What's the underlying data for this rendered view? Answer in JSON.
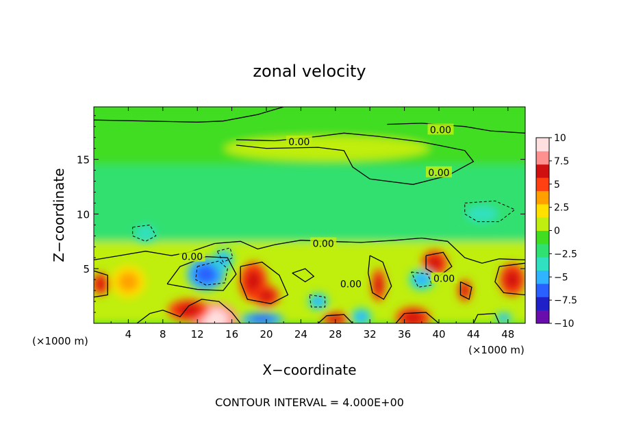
{
  "chart_data": {
    "type": "heatmap",
    "title": "zonal velocity",
    "xlabel": "X−coordinate",
    "ylabel": "Z−coordinate",
    "x_unit_left": "(×1000 m)",
    "x_unit_right": "(×1000 m)",
    "footer": "CONTOUR INTERVAL = 4.000E+00",
    "xlim": [
      0,
      50
    ],
    "ylim": [
      0,
      19.8
    ],
    "x_ticks": [
      4,
      8,
      12,
      16,
      20,
      24,
      28,
      32,
      36,
      40,
      44,
      48
    ],
    "x_tick_labels": [
      "4",
      "8",
      "12",
      "16",
      "20",
      "24",
      "28",
      "32",
      "36",
      "40",
      "44",
      "48"
    ],
    "y_ticks": [
      5,
      10,
      15
    ],
    "y_tick_labels": [
      "5",
      "10",
      "15"
    ],
    "colorbar": {
      "range": [
        -10,
        10
      ],
      "ticks": [
        10,
        7.5,
        5,
        2.5,
        0,
        -2.5,
        -5,
        -7.5,
        -10
      ],
      "tick_labels": [
        "10",
        "7.5",
        "5",
        "2.5",
        "0",
        "−2.5",
        "−5",
        "−7.5",
        "−10"
      ],
      "colors": [
        "#6a0dad",
        "#2020c8",
        "#2a60ff",
        "#30b4ff",
        "#30e0c0",
        "#30e070",
        "#40dd20",
        "#c0ee10",
        "#ffe000",
        "#ffa000",
        "#ff4010",
        "#d01010",
        "#ff9090",
        "#ffe0e0"
      ]
    },
    "contour_labels": [
      {
        "text": "0.00",
        "x": 40.2,
        "z": 17.7
      },
      {
        "text": "0.00",
        "x": 23.8,
        "z": 16.6
      },
      {
        "text": "0.00",
        "x": 40.0,
        "z": 13.8
      },
      {
        "text": "0.00",
        "x": 11.4,
        "z": 6.1
      },
      {
        "text": "0.00",
        "x": 26.6,
        "z": 7.3
      },
      {
        "text": "0.00",
        "x": 29.8,
        "z": 3.6
      },
      {
        "text": "0.00",
        "x": 40.6,
        "z": 4.1
      }
    ],
    "features": [
      {
        "x": 13,
        "z": 4.5,
        "value": -7,
        "rx": 2.2,
        "rz": 1.5
      },
      {
        "x": 14,
        "z": 0.4,
        "value": 10,
        "rx": 2.6,
        "rz": 1.5
      },
      {
        "x": 11,
        "z": 1.2,
        "value": 7,
        "rx": 2.4,
        "rz": 1.0
      },
      {
        "x": 18.5,
        "z": 3.8,
        "value": 7,
        "rx": 1.6,
        "rz": 1.8
      },
      {
        "x": 20,
        "z": 2.5,
        "value": 6,
        "rx": 1.5,
        "rz": 1.0
      },
      {
        "x": 0.8,
        "z": 3.6,
        "value": 6,
        "rx": 1.0,
        "rz": 1.0
      },
      {
        "x": 4,
        "z": 3.8,
        "value": 3.5,
        "rx": 2.0,
        "rz": 1.5
      },
      {
        "x": 6,
        "z": 8.2,
        "value": -4,
        "rx": 1.2,
        "rz": 0.8
      },
      {
        "x": 15,
        "z": 5.8,
        "value": -5,
        "rx": 1.2,
        "rz": 1.0
      },
      {
        "x": 26,
        "z": 2.0,
        "value": -5,
        "rx": 1.2,
        "rz": 0.8
      },
      {
        "x": 31,
        "z": 0.6,
        "value": -5,
        "rx": 1.2,
        "rz": 0.8
      },
      {
        "x": 19.5,
        "z": 0.4,
        "value": -6,
        "rx": 2.5,
        "rz": 0.6
      },
      {
        "x": 33,
        "z": 3.5,
        "value": 6,
        "rx": 0.8,
        "rz": 1.5
      },
      {
        "x": 37,
        "z": 0.5,
        "value": 7,
        "rx": 2.0,
        "rz": 1.0
      },
      {
        "x": 39.5,
        "z": 5.5,
        "value": 7,
        "rx": 1.5,
        "rz": 1.2
      },
      {
        "x": 38,
        "z": 4.0,
        "value": -5,
        "rx": 1.5,
        "rz": 1.0
      },
      {
        "x": 43,
        "z": 3.0,
        "value": 6,
        "rx": 0.8,
        "rz": 1.0
      },
      {
        "x": 48.5,
        "z": 4.0,
        "value": 6.5,
        "rx": 1.5,
        "rz": 1.5
      },
      {
        "x": 45,
        "z": 10.0,
        "value": -3.5,
        "rx": 3.0,
        "rz": 1.2
      },
      {
        "x": 28,
        "z": 0.4,
        "value": 6,
        "rx": 1.5,
        "rz": 0.6
      },
      {
        "x": 47.5,
        "z": 0.5,
        "value": -5,
        "rx": 1.0,
        "rz": 0.5
      }
    ]
  }
}
